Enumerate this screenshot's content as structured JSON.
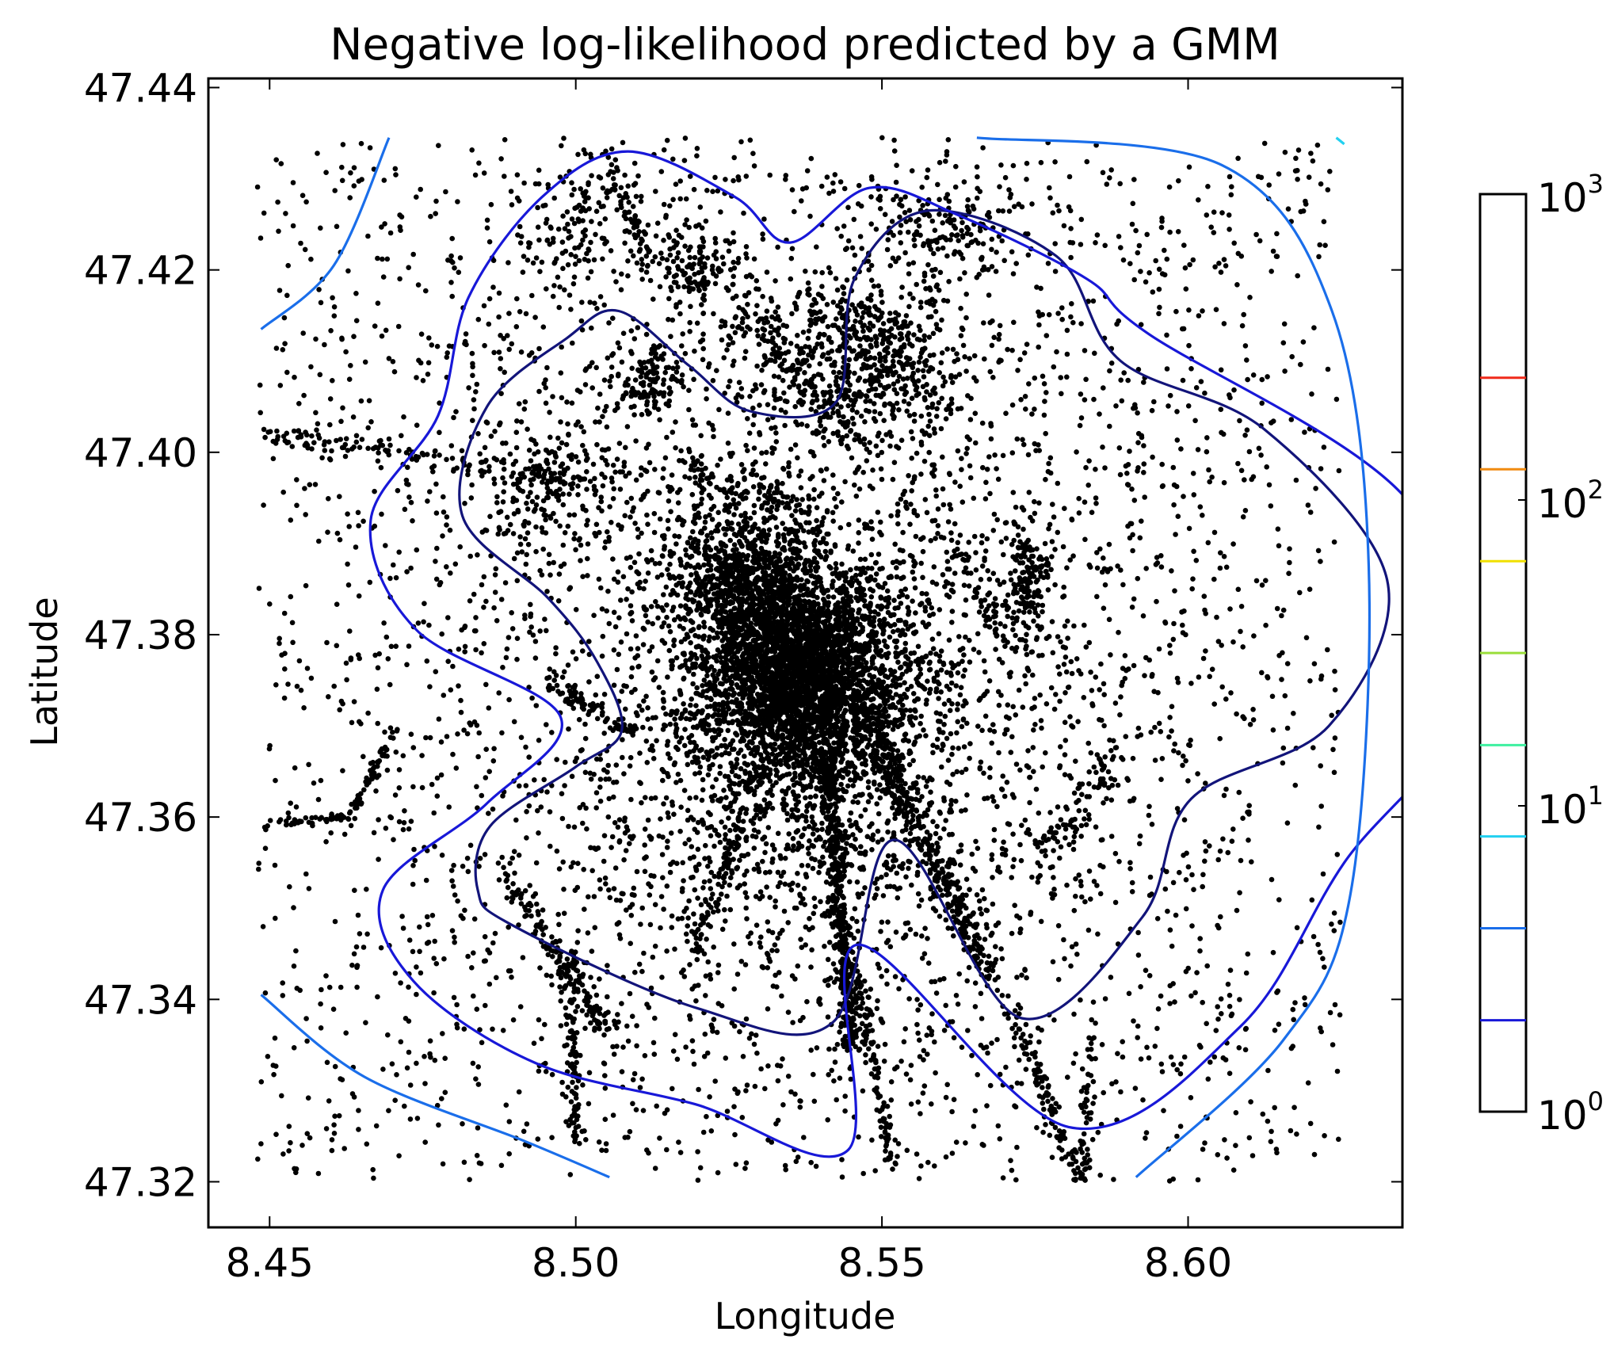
{
  "chart_data": {
    "type": "scatter",
    "title": "Negative log-likelihood predicted by a GMM",
    "xlabel": "Longitude",
    "ylabel": "Latitude",
    "xlim": [
      8.44,
      8.635
    ],
    "ylim": [
      47.315,
      47.441
    ],
    "x_ticks": [
      8.45,
      8.5,
      8.55,
      8.6
    ],
    "x_tick_labels": [
      "8.45",
      "8.50",
      "8.55",
      "8.60"
    ],
    "y_ticks": [
      47.32,
      47.34,
      47.36,
      47.38,
      47.4,
      47.42,
      47.44
    ],
    "y_tick_labels": [
      "47.32",
      "47.34",
      "47.36",
      "47.38",
      "47.40",
      "47.42",
      "47.44"
    ],
    "grid": false,
    "point_color": "#000000",
    "point_summary": "dense GPS points concentrated around 8.53-8.55, 47.37-47.38 with radiating routes",
    "contours": [
      {
        "level_index": 0,
        "color": "#12147a",
        "points": [
          [
            8.552,
            47.3575
          ],
          [
            8.542,
            47.3375
          ],
          [
            8.52,
            47.339
          ],
          [
            8.49,
            47.348
          ],
          [
            8.484,
            47.352
          ],
          [
            8.486,
            47.359
          ],
          [
            8.5,
            47.3655
          ],
          [
            8.5075,
            47.3695
          ],
          [
            8.5035,
            47.377
          ],
          [
            8.4955,
            47.384
          ],
          [
            8.4815,
            47.393
          ],
          [
            8.4855,
            47.405
          ],
          [
            8.4985,
            47.4125
          ],
          [
            8.507,
            47.4155
          ],
          [
            8.5185,
            47.4095
          ],
          [
            8.5285,
            47.4045
          ],
          [
            8.5425,
            47.4055
          ],
          [
            8.5455,
            47.419
          ],
          [
            8.5575,
            47.4265
          ],
          [
            8.5785,
            47.4215
          ],
          [
            8.589,
            47.41
          ],
          [
            8.6125,
            47.4025
          ],
          [
            8.6325,
            47.386
          ],
          [
            8.623,
            47.37
          ],
          [
            8.6005,
            47.362
          ],
          [
            8.5925,
            47.349
          ],
          [
            8.5725,
            47.338
          ],
          [
            8.552,
            47.3575
          ]
        ]
      },
      {
        "level_index": 1,
        "color": "#1818d8",
        "points": [
          [
            8.546,
            47.346
          ],
          [
            8.5445,
            47.3235
          ],
          [
            8.5195,
            47.3285
          ],
          [
            8.4935,
            47.333
          ],
          [
            8.4735,
            47.342
          ],
          [
            8.4685,
            47.352
          ],
          [
            8.4855,
            47.3615
          ],
          [
            8.4975,
            47.371
          ],
          [
            8.474,
            47.3805
          ],
          [
            8.4665,
            47.3925
          ],
          [
            8.4775,
            47.404
          ],
          [
            8.4825,
            47.417
          ],
          [
            8.4945,
            47.428
          ],
          [
            8.5085,
            47.433
          ],
          [
            8.526,
            47.428
          ],
          [
            8.535,
            47.423
          ],
          [
            8.548,
            47.429
          ],
          [
            8.5625,
            47.426
          ],
          [
            8.5835,
            47.419
          ],
          [
            8.5935,
            47.413
          ],
          [
            8.6355,
            47.395
          ],
          [
            8.6455,
            47.373
          ],
          [
            8.6255,
            47.355
          ],
          [
            8.6085,
            47.337
          ],
          [
            8.5805,
            47.326
          ],
          [
            8.546,
            47.346
          ]
        ]
      },
      {
        "level_index": 2,
        "color": "#1a6eea",
        "points": [
          [
            8.4486,
            47.4135
          ],
          [
            8.4605,
            47.4205
          ],
          [
            8.4695,
            47.4345
          ]
        ]
      },
      {
        "level_index": 2,
        "color": "#1a6eea",
        "points": [
          [
            8.4486,
            47.3405
          ],
          [
            8.4655,
            47.3315
          ],
          [
            8.4915,
            47.3245
          ],
          [
            8.5055,
            47.3205
          ]
        ]
      },
      {
        "level_index": 2,
        "color": "#1a6eea",
        "points": [
          [
            8.5655,
            47.4345
          ],
          [
            8.6055,
            47.4315
          ],
          [
            8.6235,
            47.4155
          ],
          [
            8.6295,
            47.3875
          ],
          [
            8.6265,
            47.3515
          ],
          [
            8.6155,
            47.3355
          ],
          [
            8.5915,
            47.3205
          ]
        ]
      },
      {
        "level_index": 3,
        "color": "#22d0f0",
        "points": [
          [
            8.6242,
            47.4345
          ],
          [
            8.6255,
            47.4338
          ]
        ]
      }
    ],
    "colorbar": {
      "scale": "log",
      "range": [
        1,
        1000
      ],
      "tick_labels": [
        {
          "base": "10",
          "exp": "0",
          "value": 1
        },
        {
          "base": "10",
          "exp": "1",
          "value": 10
        },
        {
          "base": "10",
          "exp": "2",
          "value": 100
        },
        {
          "base": "10",
          "exp": "3",
          "value": 1000
        }
      ],
      "level_lines": [
        {
          "value": 1.99,
          "color": "#1818d8"
        },
        {
          "value": 3.98,
          "color": "#1a6eea"
        },
        {
          "value": 7.94,
          "color": "#22d0f0"
        },
        {
          "value": 15.8,
          "color": "#3ef0a0"
        },
        {
          "value": 31.6,
          "color": "#9ade3a"
        },
        {
          "value": 63.1,
          "color": "#f0e000"
        },
        {
          "value": 126,
          "color": "#f08a10"
        },
        {
          "value": 251,
          "color": "#f02a1a"
        }
      ]
    }
  }
}
